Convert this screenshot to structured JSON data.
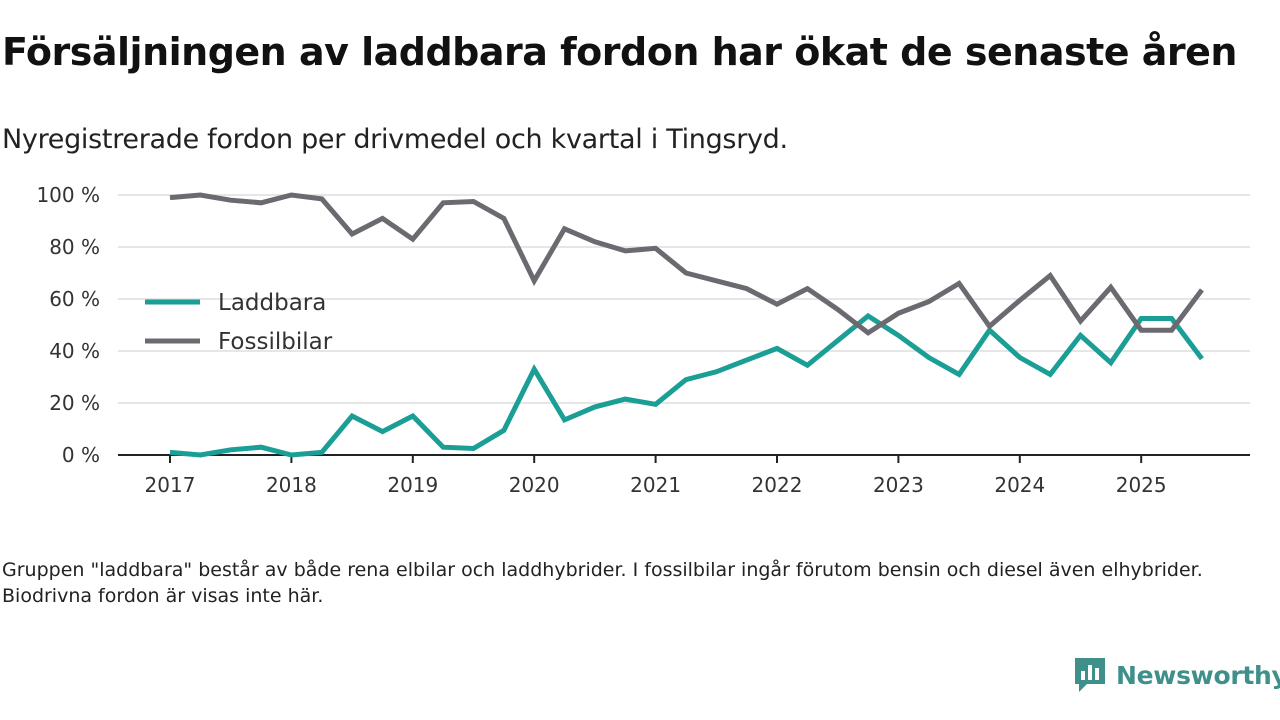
{
  "title": "Försäljningen av laddbara fordon har ökat de senaste åren",
  "subtitle": "Nyregistrerade fordon per drivmedel och kvartal i Tingsryd.",
  "footnote": "Gruppen \"laddbara\" består av både rena elbilar och laddhybrider. I fossilbilar ingår förutom bensin och diesel även elhybrider. Biodrivna fordon är visas inte här.",
  "brand": {
    "name": "Newsworthy"
  },
  "colors": {
    "laddbara": "#1a9e95",
    "fossil": "#6b6a70",
    "grid": "#dddddd",
    "axis": "#222222"
  },
  "chart_data": {
    "type": "line",
    "title": "Försäljningen av laddbara fordon har ökat de senaste åren",
    "subtitle": "Nyregistrerade fordon per drivmedel och kvartal i Tingsryd.",
    "xlabel": "",
    "ylabel": "",
    "x": [
      "2017-Q1",
      "2017-Q2",
      "2017-Q3",
      "2017-Q4",
      "2018-Q1",
      "2018-Q2",
      "2018-Q3",
      "2018-Q4",
      "2019-Q1",
      "2019-Q2",
      "2019-Q3",
      "2019-Q4",
      "2020-Q1",
      "2020-Q2",
      "2020-Q3",
      "2020-Q4",
      "2021-Q1",
      "2021-Q2",
      "2021-Q3",
      "2021-Q4",
      "2022-Q1",
      "2022-Q2",
      "2022-Q3",
      "2022-Q4",
      "2023-Q1",
      "2023-Q2",
      "2023-Q3",
      "2023-Q4",
      "2024-Q1",
      "2024-Q2",
      "2024-Q3",
      "2024-Q4",
      "2025-Q1",
      "2025-Q2",
      "2025-Q3"
    ],
    "x_ticks": [
      "2017",
      "2018",
      "2019",
      "2020",
      "2021",
      "2022",
      "2023",
      "2024",
      "2025"
    ],
    "y_ticks": [
      "0 %",
      "20 %",
      "40 %",
      "60 %",
      "80 %",
      "100 %"
    ],
    "ylim": [
      0,
      100
    ],
    "grid": true,
    "legend_position": "center-left",
    "series": [
      {
        "name": "Laddbara",
        "color": "#1a9e95",
        "values": [
          1,
          0,
          2,
          3,
          0,
          1,
          15,
          9,
          15,
          3,
          2.5,
          9.5,
          33,
          13.5,
          18.5,
          21.5,
          19.5,
          29,
          32,
          36.5,
          41,
          34.5,
          44,
          53.5,
          46,
          37.5,
          31,
          48,
          37.5,
          31,
          46,
          35.5,
          52.5,
          52.5,
          37
        ]
      },
      {
        "name": "Fossilbilar",
        "color": "#6b6a70",
        "values": [
          99,
          100,
          98,
          97,
          100,
          98.5,
          85,
          91,
          83,
          97,
          97.5,
          91,
          67,
          87,
          82,
          78.5,
          79.5,
          70,
          67,
          64,
          58,
          64,
          56,
          47,
          54.5,
          59,
          66,
          49.5,
          59.5,
          69,
          51.5,
          64.5,
          48,
          48,
          63.5
        ]
      }
    ]
  }
}
